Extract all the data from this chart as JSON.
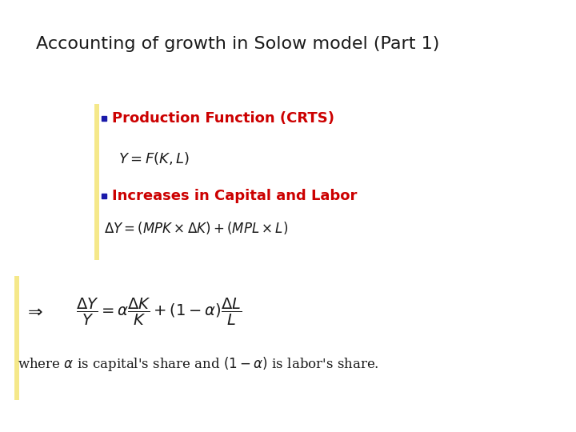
{
  "title": "Accounting of growth in Solow model (Part 1)",
  "title_fontsize": 16,
  "title_color": "#1a1a1a",
  "bg_color": "#ffffff",
  "bullet_color": "#1a1aaa",
  "header1_color": "#cc0000",
  "header1_text": "Production Function (CRTS)",
  "header2_color": "#cc0000",
  "header2_text": "Increases in Capital and Labor",
  "left_bar_color": "#f5e88a",
  "arrow_color": "#1a1a1a",
  "header_fontsize": 13,
  "formula_fontsize": 13,
  "caption_fontsize": 12,
  "main_formula_fontsize": 14
}
